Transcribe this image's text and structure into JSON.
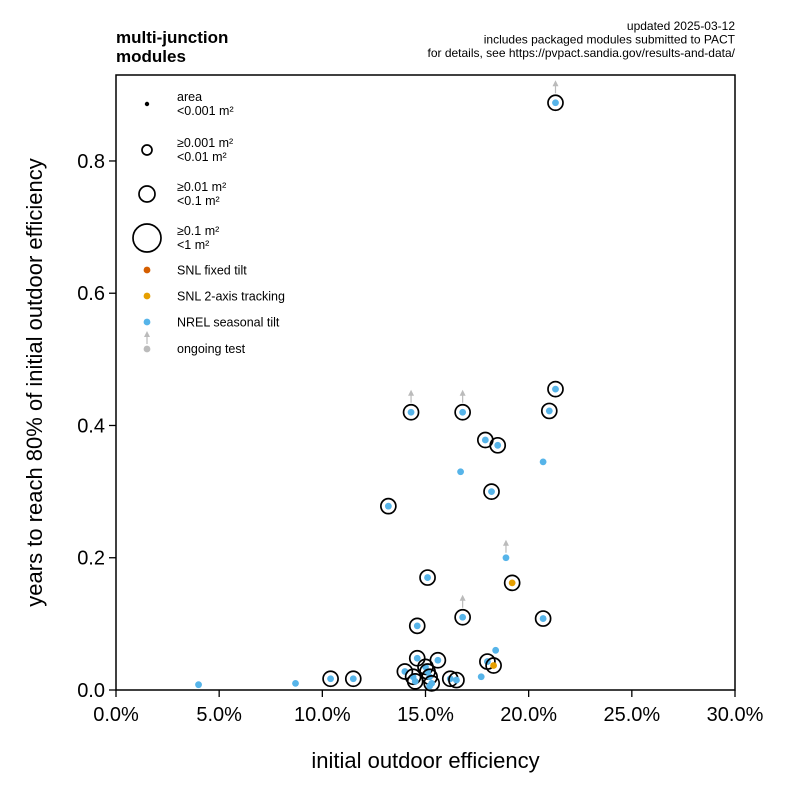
{
  "chart_data": {
    "type": "scatter",
    "title_lines": [
      "multi-junction",
      "modules"
    ],
    "notes": [
      "updated 2025-03-12",
      "includes packaged modules submitted to PACT",
      "for details, see https://pvpact.sandia.gov/results-and-data/"
    ],
    "xlabel": "initial outdoor efficiency",
    "ylabel": "years to reach 80% of initial outdoor efficiency",
    "xlim": [
      0,
      0.3
    ],
    "ylim": [
      0,
      0.93
    ],
    "xticks": [
      0,
      0.05,
      0.1,
      0.15,
      0.2,
      0.25,
      0.3
    ],
    "xtick_labels": [
      "0.0%",
      "5.0%",
      "10.0%",
      "15.0%",
      "20.0%",
      "25.0%",
      "30.0%"
    ],
    "yticks": [
      0,
      0.2,
      0.4,
      0.6,
      0.8
    ],
    "ytick_labels": [
      "0.0",
      "0.2",
      "0.4",
      "0.6",
      "0.8"
    ],
    "grid": false,
    "legend_position": "top-left",
    "legend": {
      "size_entries": [
        {
          "lines": [
            "area",
            "<0.001 m²"
          ],
          "size": 0
        },
        {
          "lines": [
            "≥0.001 m²",
            "<0.01 m²"
          ],
          "size": 1
        },
        {
          "lines": [
            "≥0.01 m²",
            "<0.1 m²"
          ],
          "size": 2
        },
        {
          "lines": [
            "≥0.1 m²",
            "<1 m²"
          ],
          "size": 3
        }
      ],
      "color_entries": [
        {
          "label": "SNL fixed tilt",
          "color": "#d55e00"
        },
        {
          "label": "SNL 2-axis tracking",
          "color": "#e69f00"
        },
        {
          "label": "NREL seasonal tilt",
          "color": "#56b4e9"
        }
      ],
      "ongoing_label": "ongoing test",
      "ongoing_color": "#bbbbbb"
    },
    "series": [
      {
        "name": "NREL seasonal tilt",
        "color": "#56b4e9",
        "points": [
          {
            "x": 0.213,
            "y": 0.888,
            "size": 2,
            "ongoing": true
          },
          {
            "x": 0.213,
            "y": 0.455,
            "size": 2,
            "ongoing": false
          },
          {
            "x": 0.21,
            "y": 0.422,
            "size": 2,
            "ongoing": false
          },
          {
            "x": 0.143,
            "y": 0.42,
            "size": 2,
            "ongoing": true
          },
          {
            "x": 0.168,
            "y": 0.42,
            "size": 2,
            "ongoing": true
          },
          {
            "x": 0.179,
            "y": 0.378,
            "size": 2,
            "ongoing": false
          },
          {
            "x": 0.185,
            "y": 0.37,
            "size": 2,
            "ongoing": false
          },
          {
            "x": 0.207,
            "y": 0.345,
            "size": 0,
            "ongoing": false
          },
          {
            "x": 0.167,
            "y": 0.33,
            "size": 0,
            "ongoing": false
          },
          {
            "x": 0.182,
            "y": 0.3,
            "size": 2,
            "ongoing": false
          },
          {
            "x": 0.132,
            "y": 0.278,
            "size": 2,
            "ongoing": false
          },
          {
            "x": 0.189,
            "y": 0.2,
            "size": 0,
            "ongoing": true
          },
          {
            "x": 0.151,
            "y": 0.17,
            "size": 2,
            "ongoing": false
          },
          {
            "x": 0.168,
            "y": 0.11,
            "size": 2,
            "ongoing": true
          },
          {
            "x": 0.207,
            "y": 0.108,
            "size": 2,
            "ongoing": false
          },
          {
            "x": 0.146,
            "y": 0.097,
            "size": 2,
            "ongoing": false
          },
          {
            "x": 0.184,
            "y": 0.06,
            "size": 0,
            "ongoing": false
          },
          {
            "x": 0.146,
            "y": 0.048,
            "size": 2,
            "ongoing": false
          },
          {
            "x": 0.156,
            "y": 0.045,
            "size": 2,
            "ongoing": false
          },
          {
            "x": 0.18,
            "y": 0.043,
            "size": 2,
            "ongoing": false
          },
          {
            "x": 0.15,
            "y": 0.035,
            "size": 2,
            "ongoing": false
          },
          {
            "x": 0.14,
            "y": 0.028,
            "size": 2,
            "ongoing": false
          },
          {
            "x": 0.151,
            "y": 0.028,
            "size": 2,
            "ongoing": false
          },
          {
            "x": 0.144,
            "y": 0.02,
            "size": 2,
            "ongoing": false
          },
          {
            "x": 0.152,
            "y": 0.02,
            "size": 2,
            "ongoing": false
          },
          {
            "x": 0.177,
            "y": 0.02,
            "size": 0,
            "ongoing": false
          },
          {
            "x": 0.104,
            "y": 0.017,
            "size": 2,
            "ongoing": false
          },
          {
            "x": 0.115,
            "y": 0.017,
            "size": 2,
            "ongoing": false
          },
          {
            "x": 0.162,
            "y": 0.017,
            "size": 2,
            "ongoing": false
          },
          {
            "x": 0.165,
            "y": 0.015,
            "size": 2,
            "ongoing": false
          },
          {
            "x": 0.145,
            "y": 0.013,
            "size": 2,
            "ongoing": false
          },
          {
            "x": 0.153,
            "y": 0.01,
            "size": 2,
            "ongoing": false
          },
          {
            "x": 0.087,
            "y": 0.01,
            "size": 0,
            "ongoing": false
          },
          {
            "x": 0.04,
            "y": 0.008,
            "size": 0,
            "ongoing": false
          },
          {
            "x": 0.152,
            "y": 0.006,
            "size": 0,
            "ongoing": false
          }
        ]
      },
      {
        "name": "SNL 2-axis tracking",
        "color": "#e69f00",
        "points": [
          {
            "x": 0.192,
            "y": 0.162,
            "size": 2,
            "ongoing": false
          },
          {
            "x": 0.183,
            "y": 0.037,
            "size": 2,
            "ongoing": false
          }
        ]
      }
    ]
  }
}
